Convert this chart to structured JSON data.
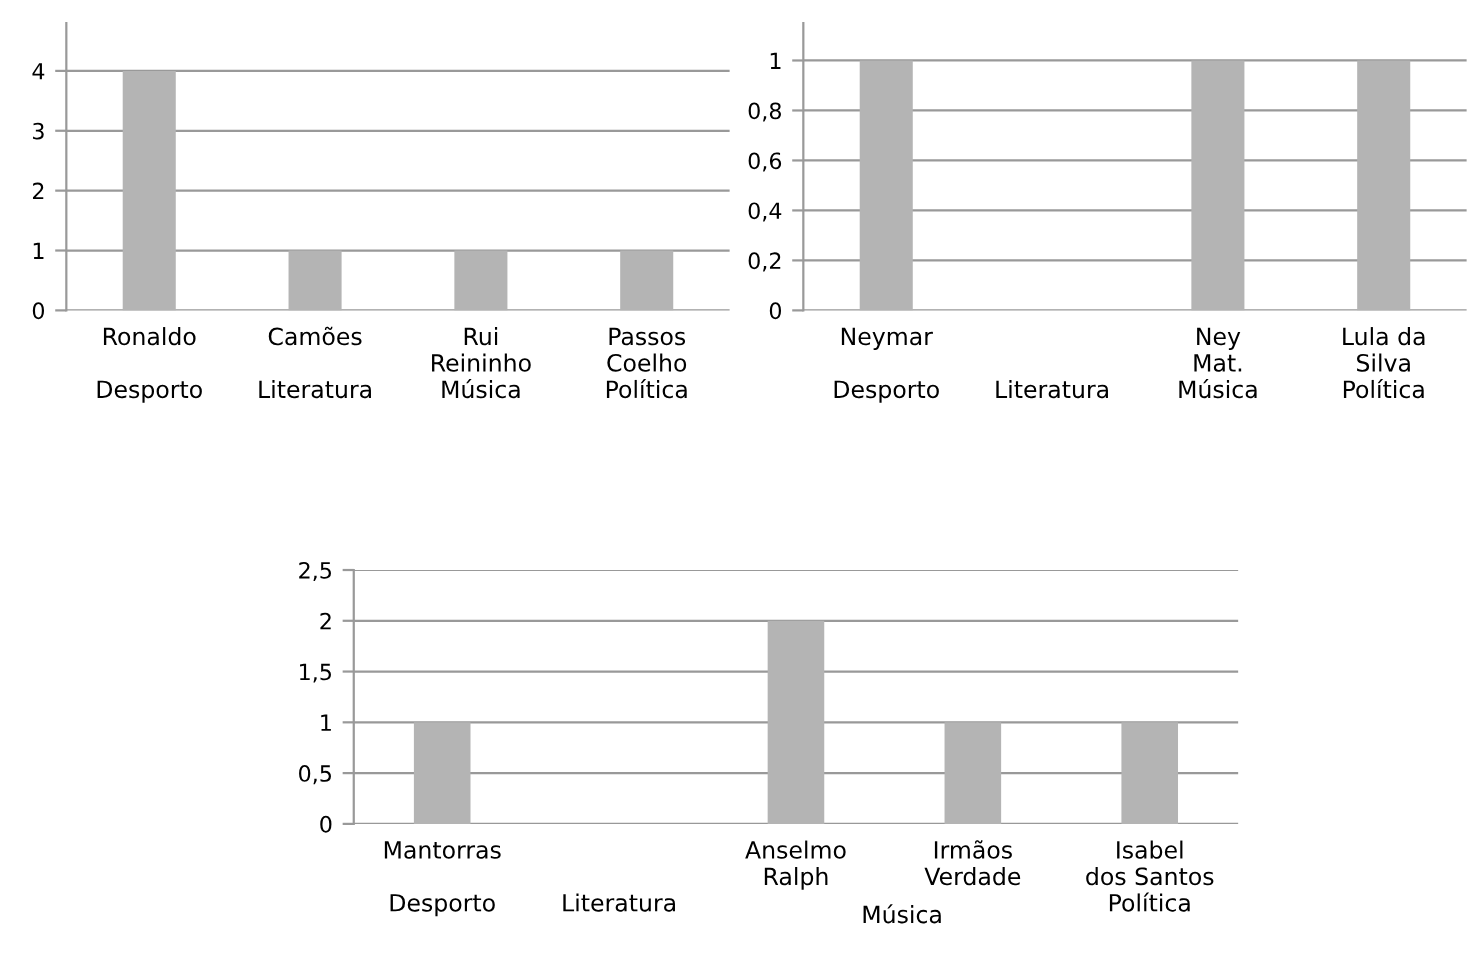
{
  "chart_data": [
    {
      "type": "bar",
      "categories": [
        "Ronaldo\n\nDesporto",
        "Camões\n\nLiteratura",
        "Rui\nReininho\nMúsica",
        "Passos\nCoelho\nPolítica"
      ],
      "values": [
        4,
        1,
        1,
        1
      ],
      "color": "#b4b4b4",
      "ylim": [
        0,
        4.8
      ],
      "yticks": [
        0,
        1,
        2,
        3,
        4
      ],
      "grid": "y"
    },
    {
      "type": "bar",
      "categories": [
        "Neymar\n\nDesporto",
        "\n\nLiteratura",
        "Ney\nMat.\nMúsica",
        "Lula da\nSilva\nPolítica"
      ],
      "values": [
        1,
        null,
        1,
        1
      ],
      "color": "#b4b4b4",
      "ylim": [
        0,
        1.15
      ],
      "yticks": [
        0,
        {
          "value": 0.2,
          "label": "0,2"
        },
        {
          "value": 0.4,
          "label": "0,4"
        },
        {
          "value": 0.6,
          "label": "0,6"
        },
        {
          "value": 0.8,
          "label": "0,8"
        },
        1
      ],
      "grid": "y"
    },
    {
      "type": "bar",
      "categories": [
        "Mantorras\n\nDesporto",
        "\n\nLiteratura",
        "Anselmo\nRalph",
        "Irmãos\nVerdade",
        "Isabel\ndos Santos\nPolítica"
      ],
      "values": [
        1,
        null,
        2,
        1,
        1
      ],
      "color": "#b4b4b4",
      "ylim": [
        0,
        2.5
      ],
      "yticks": [
        0,
        {
          "value": 0.5,
          "label": "0,5"
        },
        1,
        {
          "value": 1.5,
          "label": "1,5"
        },
        2,
        {
          "value": 2.5,
          "label": "2,5"
        }
      ],
      "grid": "y",
      "annotations": [
        "Música"
      ]
    }
  ]
}
